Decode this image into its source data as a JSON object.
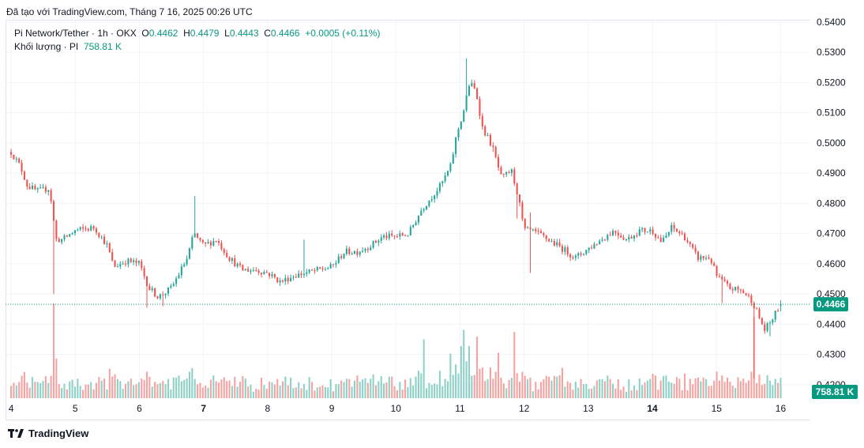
{
  "caption": "Đã tạo với TradingView.com, Tháng 7 16, 2025 00:26 UTC",
  "legend": {
    "symbol": "Pi Network/Tether · 1h · OKX",
    "o_label": "O",
    "o_value": "0.4462",
    "h_label": "H",
    "h_value": "0.4479",
    "l_label": "L",
    "l_value": "0.4443",
    "c_label": "C",
    "c_value": "0.4466",
    "change": "+0.0005 (+0.11%)",
    "volume_label": "Khối lượng · PI",
    "volume_value": "758.81 K"
  },
  "footer": {
    "brand": "TradingView"
  },
  "colors": {
    "up": "#26a69a",
    "down": "#ef5350",
    "up_vol": "#8ed1c7",
    "down_vol": "#f5a3a1",
    "price_tag": "#089981"
  },
  "chart_data": {
    "type": "candlestick",
    "title": "Pi Network/Tether · 1h · OKX",
    "ylim": [
      0.415,
      0.5405
    ],
    "y_ticks": [
      "0.5400",
      "0.5300",
      "0.5200",
      "0.5100",
      "0.5000",
      "0.4900",
      "0.4800",
      "0.4700",
      "0.4600",
      "0.4500",
      "0.4400",
      "0.4300",
      "0.4200"
    ],
    "x_labels": [
      {
        "label": "4",
        "x": 0,
        "bold": false
      },
      {
        "label": "5",
        "x": 1,
        "bold": false
      },
      {
        "label": "6",
        "x": 2,
        "bold": false
      },
      {
        "label": "7",
        "x": 3,
        "bold": true
      },
      {
        "label": "8",
        "x": 4,
        "bold": false
      },
      {
        "label": "9",
        "x": 5,
        "bold": false
      },
      {
        "label": "10",
        "x": 6,
        "bold": false
      },
      {
        "label": "11",
        "x": 7,
        "bold": false
      },
      {
        "label": "12",
        "x": 8,
        "bold": false
      },
      {
        "label": "13",
        "x": 9,
        "bold": false
      },
      {
        "label": "14",
        "x": 10,
        "bold": true
      },
      {
        "label": "15",
        "x": 11,
        "bold": false
      },
      {
        "label": "16",
        "x": 12,
        "bold": false
      }
    ],
    "x_range": [
      -0.05,
      12.45
    ],
    "last_price": "0.4466",
    "last_volume": "758.81 K",
    "anchors": [
      [
        0.0,
        0.497
      ],
      [
        0.15,
        0.492
      ],
      [
        0.25,
        0.486
      ],
      [
        0.4,
        0.484
      ],
      [
        0.6,
        0.485
      ],
      [
        0.7,
        0.468
      ],
      [
        0.8,
        0.468
      ],
      [
        1.0,
        0.471
      ],
      [
        1.3,
        0.472
      ],
      [
        1.5,
        0.466
      ],
      [
        1.6,
        0.459
      ],
      [
        1.8,
        0.461
      ],
      [
        2.0,
        0.46
      ],
      [
        2.15,
        0.452
      ],
      [
        2.3,
        0.449
      ],
      [
        2.5,
        0.452
      ],
      [
        2.75,
        0.462
      ],
      [
        2.85,
        0.47
      ],
      [
        3.0,
        0.466
      ],
      [
        3.2,
        0.468
      ],
      [
        3.4,
        0.462
      ],
      [
        3.6,
        0.458
      ],
      [
        3.8,
        0.458
      ],
      [
        4.0,
        0.457
      ],
      [
        4.2,
        0.454
      ],
      [
        4.4,
        0.456
      ],
      [
        4.6,
        0.457
      ],
      [
        4.8,
        0.458
      ],
      [
        5.0,
        0.459
      ],
      [
        5.2,
        0.464
      ],
      [
        5.4,
        0.464
      ],
      [
        5.6,
        0.466
      ],
      [
        5.8,
        0.469
      ],
      [
        6.0,
        0.469
      ],
      [
        6.2,
        0.47
      ],
      [
        6.4,
        0.478
      ],
      [
        6.55,
        0.482
      ],
      [
        6.7,
        0.486
      ],
      [
        6.85,
        0.492
      ],
      [
        6.95,
        0.503
      ],
      [
        7.05,
        0.51
      ],
      [
        7.15,
        0.52
      ],
      [
        7.25,
        0.517
      ],
      [
        7.35,
        0.505
      ],
      [
        7.5,
        0.499
      ],
      [
        7.65,
        0.488
      ],
      [
        7.8,
        0.491
      ],
      [
        7.9,
        0.483
      ],
      [
        8.0,
        0.471
      ],
      [
        8.1,
        0.471
      ],
      [
        8.3,
        0.469
      ],
      [
        8.6,
        0.465
      ],
      [
        8.8,
        0.462
      ],
      [
        9.0,
        0.465
      ],
      [
        9.2,
        0.468
      ],
      [
        9.4,
        0.471
      ],
      [
        9.6,
        0.468
      ],
      [
        9.8,
        0.471
      ],
      [
        10.0,
        0.471
      ],
      [
        10.15,
        0.467
      ],
      [
        10.3,
        0.472
      ],
      [
        10.5,
        0.469
      ],
      [
        10.7,
        0.462
      ],
      [
        10.9,
        0.462
      ],
      [
        11.0,
        0.456
      ],
      [
        11.2,
        0.452
      ],
      [
        11.4,
        0.451
      ],
      [
        11.55,
        0.448
      ],
      [
        11.65,
        0.443
      ],
      [
        11.75,
        0.438
      ],
      [
        11.85,
        0.441
      ],
      [
        12.0,
        0.4466
      ]
    ],
    "spikes": [
      {
        "x": 0.65,
        "low": 0.45
      },
      {
        "x": 2.1,
        "low": 0.4455
      },
      {
        "x": 2.35,
        "low": 0.446
      },
      {
        "x": 2.85,
        "high": 0.4825
      },
      {
        "x": 4.55,
        "high": 0.468
      },
      {
        "x": 7.1,
        "high": 0.528
      },
      {
        "x": 7.9,
        "low": 0.475
      },
      {
        "x": 7.95,
        "low": 0.479
      },
      {
        "x": 7.5,
        "low": 0.497
      },
      {
        "x": 8.1,
        "low": 0.457
      },
      {
        "x": 8.1,
        "high": 0.477
      },
      {
        "x": 11.1,
        "low": 0.447
      },
      {
        "x": 11.58,
        "low": 0.422
      },
      {
        "x": 11.68,
        "low": 0.443
      },
      {
        "x": 11.85,
        "low": 0.436
      }
    ],
    "volume_spikes": [
      {
        "x": 0.65,
        "v": 1.0
      },
      {
        "x": 2.1,
        "v": 0.28
      },
      {
        "x": 2.8,
        "v": 0.28
      },
      {
        "x": 3.2,
        "v": 0.18
      },
      {
        "x": 4.55,
        "v": 0.15
      },
      {
        "x": 6.45,
        "v": 0.62
      },
      {
        "x": 6.85,
        "v": 0.47
      },
      {
        "x": 7.0,
        "v": 0.55
      },
      {
        "x": 7.05,
        "v": 0.72
      },
      {
        "x": 7.15,
        "v": 0.55
      },
      {
        "x": 7.25,
        "v": 0.65
      },
      {
        "x": 7.6,
        "v": 0.48
      },
      {
        "x": 7.85,
        "v": 0.7
      },
      {
        "x": 8.6,
        "v": 0.32
      },
      {
        "x": 9.2,
        "v": 0.2
      },
      {
        "x": 10.2,
        "v": 0.24
      },
      {
        "x": 11.1,
        "v": 0.24
      },
      {
        "x": 11.6,
        "v": 0.86
      },
      {
        "x": 11.55,
        "v": 0.28
      },
      {
        "x": 11.7,
        "v": 0.14
      }
    ]
  }
}
